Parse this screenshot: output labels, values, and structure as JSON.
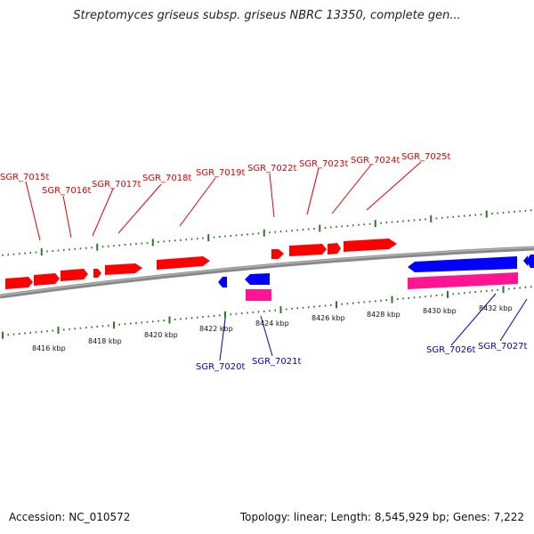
{
  "title": "Streptomyces griseus subsp. griseus NBRC 13350, complete gen...",
  "footer": {
    "accession": "Accession: NC_010572",
    "summary": "Topology: linear; Length: 8,545,929 bp; Genes: 7,222"
  },
  "colors": {
    "plus_gene": "#ff0000",
    "minus_gene": "#0000ff",
    "trna_bar": "#ff1493",
    "backbone": "#888888",
    "scale_ticks": "#2a7a2a",
    "label_plus": "#e00000",
    "label_minus": "#0000d0"
  },
  "scale_labels": [
    "8416 kbp",
    "8418 kbp",
    "8420 kbp",
    "8422 kbp",
    "8424 kbp",
    "8426 kbp",
    "8428 kbp",
    "8430 kbp",
    "8432 kbp"
  ],
  "gene_labels_plus": [
    "SGR_7015t",
    "SGR_7016t",
    "SGR_7017t",
    "SGR_7018t",
    "SGR_7019t",
    "SGR_7022t",
    "SGR_7023t",
    "SGR_7024t",
    "SGR_7025t"
  ],
  "gene_labels_minus": [
    "SGR_7020t",
    "SGR_7021t",
    "SGR_7026t",
    "SGR_7027t"
  ]
}
